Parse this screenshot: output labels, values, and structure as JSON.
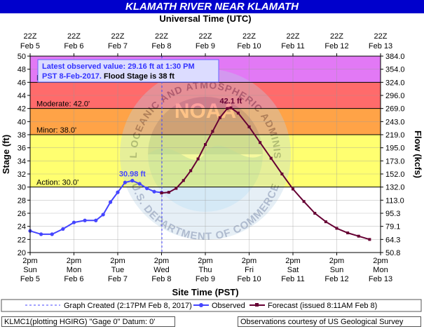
{
  "title": "KLAMATH RIVER NEAR KLAMATH",
  "footer": {
    "station": "KLMC1(plotting HGIRG) \"Gage 0\" Datum: 0'",
    "credit": "Observations courtesy of US Geological Survey"
  },
  "chart_data": {
    "type": "line",
    "top_axis_title": "Universal Time (UTC)",
    "xlabel": "Site Time (PST)",
    "ylabel": "Stage (ft)",
    "y2label": "Flow (kcfs)",
    "ylim": [
      20,
      50
    ],
    "y_ticks": [
      20,
      22,
      24,
      26,
      28,
      30,
      32,
      34,
      36,
      38,
      40,
      42,
      44,
      46,
      48,
      50
    ],
    "y2_ticks": [
      "50.8",
      "64.3",
      "79.1",
      "95.3",
      "113.0",
      "132.0",
      "152.0",
      "173.0",
      "195.0",
      "219.0",
      "243.0",
      "269.0",
      "296.0",
      "324.0",
      "354.0",
      "384.0"
    ],
    "x_range_hours": [
      0,
      192
    ],
    "bottom_ticks": [
      {
        "hour": 0,
        "line1": "2pm",
        "line2": "Sun",
        "line3": "Feb 5"
      },
      {
        "hour": 24,
        "line1": "2pm",
        "line2": "Mon",
        "line3": "Feb 6"
      },
      {
        "hour": 48,
        "line1": "2pm",
        "line2": "Tue",
        "line3": "Feb 7"
      },
      {
        "hour": 72,
        "line1": "2pm",
        "line2": "Wed",
        "line3": "Feb 8"
      },
      {
        "hour": 96,
        "line1": "2pm",
        "line2": "Thu",
        "line3": "Feb 9"
      },
      {
        "hour": 120,
        "line1": "2pm",
        "line2": "Fri",
        "line3": "Feb 10"
      },
      {
        "hour": 144,
        "line1": "2pm",
        "line2": "Sat",
        "line3": "Feb 11"
      },
      {
        "hour": 168,
        "line1": "2pm",
        "line2": "Sun",
        "line3": "Feb 12"
      },
      {
        "hour": 192,
        "line1": "2pm",
        "line2": "Mon",
        "line3": "Feb 13"
      }
    ],
    "top_ticks": [
      {
        "hour": 0,
        "line1": "22Z",
        "line2": "Feb 5"
      },
      {
        "hour": 24,
        "line1": "22Z",
        "line2": "Feb 6"
      },
      {
        "hour": 48,
        "line1": "22Z",
        "line2": "Feb 7"
      },
      {
        "hour": 72,
        "line1": "22Z",
        "line2": "Feb 8"
      },
      {
        "hour": 96,
        "line1": "22Z",
        "line2": "Feb 9"
      },
      {
        "hour": 120,
        "line1": "22Z",
        "line2": "Feb 10"
      },
      {
        "hour": 144,
        "line1": "22Z",
        "line2": "Feb 11"
      },
      {
        "hour": 168,
        "line1": "22Z",
        "line2": "Feb 12"
      },
      {
        "hour": 192,
        "line1": "22Z",
        "line2": "Feb 13"
      }
    ],
    "flood_bands": [
      {
        "name": "Major",
        "label": "Major: 46.0'",
        "from": 46,
        "to": 50,
        "color": "#e279f5"
      },
      {
        "name": "Moderate",
        "label": "Moderate: 42.0'",
        "from": 42,
        "to": 46,
        "color": "#ff6b6b"
      },
      {
        "name": "Minor",
        "label": "Minor: 38.0'",
        "from": 38,
        "to": 42,
        "color": "#ffa347"
      },
      {
        "name": "Action",
        "label": "Action: 30.0'",
        "from": 30,
        "to": 38,
        "color": "#ffff70"
      }
    ],
    "annotation": {
      "line1": "Latest observed value: 29.16 ft at 1:30 PM",
      "line2a": "PST 8-Feb-2017.",
      "line2b": " Flood Stage is 38 ft"
    },
    "graph_created_hour": 72.2,
    "series": [
      {
        "name": "Observed",
        "color": "#4545ff",
        "x": [
          0,
          6,
          12,
          18,
          24,
          30,
          36,
          40,
          44,
          48,
          52,
          56,
          60,
          64,
          68,
          72
        ],
        "y": [
          23.3,
          22.8,
          22.8,
          23.6,
          24.6,
          24.9,
          24.9,
          25.8,
          27.7,
          29.2,
          30.7,
          30.98,
          30.5,
          29.8,
          29.3,
          29.16
        ]
      },
      {
        "name": "Forecast (issued 8:11AM Feb 8)",
        "color": "#660033",
        "x": [
          72,
          76,
          80,
          84,
          88,
          92,
          96,
          100,
          104,
          108,
          110,
          114,
          120,
          126,
          132,
          138,
          144,
          150,
          156,
          162,
          168,
          174,
          180,
          186
        ],
        "y": [
          29.1,
          29.2,
          29.8,
          31.0,
          32.5,
          34.3,
          36.5,
          38.5,
          40.6,
          42.0,
          42.1,
          41.3,
          39.2,
          36.8,
          34.4,
          32.0,
          29.7,
          27.8,
          26.0,
          24.7,
          23.7,
          23.0,
          22.5,
          22.0
        ]
      }
    ],
    "peak_labels": [
      {
        "text": "30.98 ft",
        "x": 56,
        "y": 30.98,
        "color": "#4545ff"
      },
      {
        "text": "42.1 ft",
        "x": 110,
        "y": 42.1,
        "color": "#660033"
      }
    ],
    "legend": {
      "created": "Graph Created (2:17PM Feb 8, 2017)",
      "observed": "Observed",
      "forecast": "Forecast (issued 8:11AM Feb 8)"
    },
    "watermark_text": {
      "top": "NATIONAL OCEANIC AND ATMOSPHERIC ADMINISTRATION",
      "logo": "NOAA",
      "bottom": "U.S. DEPARTMENT OF COMMERCE"
    }
  }
}
